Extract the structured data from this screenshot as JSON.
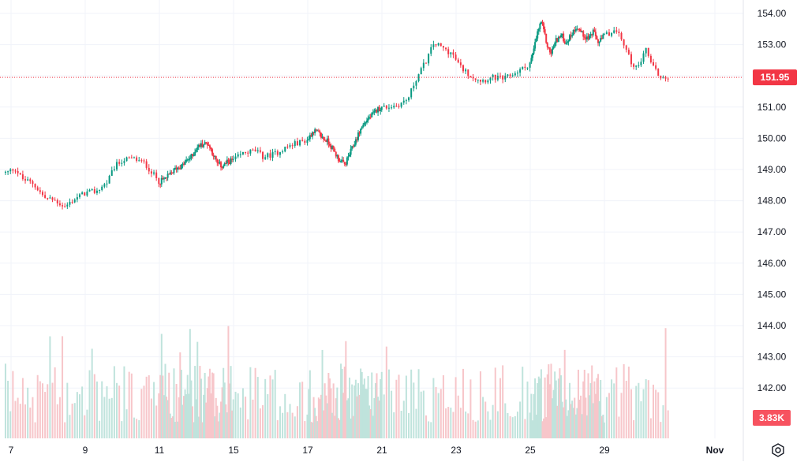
{
  "chart_data": {
    "type": "candlestick",
    "title": "",
    "xlabel": "",
    "ylabel": "",
    "ylim": [
      140.9,
      154.4
    ],
    "y_ticks": [
      "154.00",
      "153.00",
      "152.00",
      "151.00",
      "150.00",
      "149.00",
      "148.00",
      "147.00",
      "146.00",
      "145.00",
      "144.00",
      "143.00",
      "142.00"
    ],
    "y_tick_values": [
      154,
      153,
      152,
      151,
      150,
      149,
      148,
      147,
      146,
      145,
      144,
      143,
      142
    ],
    "x_ticks": [
      {
        "label": "7",
        "day": 7,
        "bold": false
      },
      {
        "label": "9",
        "day": 9,
        "bold": false
      },
      {
        "label": "11",
        "day": 11,
        "bold": false
      },
      {
        "label": "15",
        "day": 15,
        "bold": false
      },
      {
        "label": "17",
        "day": 17,
        "bold": false
      },
      {
        "label": "21",
        "day": 21,
        "bold": false
      },
      {
        "label": "23",
        "day": 23,
        "bold": false
      },
      {
        "label": "25",
        "day": 25,
        "bold": false
      },
      {
        "label": "29",
        "day": 29,
        "bold": false
      },
      {
        "label": "Nov",
        "day": 32,
        "bold": true
      }
    ],
    "price_path": [
      [
        6.9,
        148.9
      ],
      [
        7.1,
        149.05
      ],
      [
        7.3,
        148.7
      ],
      [
        7.6,
        148.55
      ],
      [
        7.9,
        148.1
      ],
      [
        8.2,
        148.0
      ],
      [
        8.45,
        147.8
      ],
      [
        8.7,
        148.05
      ],
      [
        9.0,
        148.25
      ],
      [
        9.3,
        148.3
      ],
      [
        9.6,
        148.6
      ],
      [
        9.8,
        149.1
      ],
      [
        10.0,
        149.3
      ],
      [
        10.3,
        149.35
      ],
      [
        10.6,
        149.2
      ],
      [
        10.8,
        148.9
      ],
      [
        11.0,
        148.6
      ],
      [
        11.3,
        148.7
      ],
      [
        11.6,
        148.85
      ],
      [
        11.9,
        149.05
      ],
      [
        12.2,
        149.1
      ],
      [
        12.5,
        149.3
      ],
      [
        12.8,
        149.45
      ],
      [
        13.0,
        149.7
      ],
      [
        13.3,
        149.8
      ],
      [
        13.6,
        149.85
      ],
      [
        13.9,
        149.5
      ],
      [
        14.1,
        149.2
      ],
      [
        14.4,
        149.1
      ],
      [
        14.7,
        149.25
      ],
      [
        15.0,
        149.3
      ],
      [
        15.3,
        149.55
      ],
      [
        15.6,
        149.6
      ],
      [
        15.8,
        149.4
      ],
      [
        16.1,
        149.5
      ],
      [
        16.4,
        149.7
      ],
      [
        16.7,
        149.85
      ],
      [
        17.0,
        149.95
      ],
      [
        17.3,
        150.25
      ],
      [
        17.6,
        150.15
      ],
      [
        17.8,
        150.0
      ],
      [
        18.1,
        149.9
      ],
      [
        18.4,
        149.6
      ],
      [
        18.7,
        149.3
      ],
      [
        19.0,
        149.15
      ],
      [
        19.3,
        149.55
      ],
      [
        19.6,
        149.95
      ],
      [
        19.9,
        150.35
      ],
      [
        20.2,
        150.6
      ],
      [
        20.5,
        150.75
      ],
      [
        20.8,
        150.95
      ],
      [
        21.1,
        151.0
      ],
      [
        21.4,
        151.05
      ],
      [
        21.7,
        151.25
      ],
      [
        21.9,
        151.85
      ],
      [
        22.2,
        152.5
      ],
      [
        22.4,
        153.05
      ],
      [
        22.7,
        152.85
      ],
      [
        22.9,
        152.7
      ],
      [
        23.1,
        152.3
      ],
      [
        23.4,
        152.0
      ],
      [
        23.7,
        151.85
      ],
      [
        24.0,
        151.95
      ],
      [
        24.3,
        151.9
      ],
      [
        24.6,
        152.1
      ],
      [
        24.9,
        152.3
      ],
      [
        25.1,
        152.6
      ],
      [
        25.4,
        153.4
      ],
      [
        25.6,
        153.75
      ],
      [
        25.9,
        153.0
      ],
      [
        26.1,
        152.7
      ],
      [
        26.4,
        153.15
      ],
      [
        26.7,
        153.3
      ],
      [
        26.9,
        153.05
      ],
      [
        27.2,
        153.3
      ],
      [
        27.5,
        153.6
      ],
      [
        27.8,
        153.35
      ],
      [
        28.1,
        153.2
      ],
      [
        28.4,
        153.4
      ],
      [
        28.7,
        153.05
      ],
      [
        29.0,
        153.3
      ],
      [
        29.3,
        153.45
      ],
      [
        29.5,
        153.1
      ],
      [
        29.7,
        152.5
      ],
      [
        29.9,
        152.2
      ],
      [
        30.1,
        152.9
      ],
      [
        30.3,
        152.4
      ],
      [
        30.5,
        151.95
      ],
      [
        30.7,
        151.95
      ]
    ],
    "last_price": "151.95",
    "last_price_color": "#f23645",
    "up_color": "#089981",
    "down_color": "#f23645",
    "volume_label": "3.83K",
    "volume_label_color": "#f7525f",
    "volume_max": 4,
    "grid": true,
    "price_scale_position": "right"
  },
  "settings": {
    "icon": "gear-icon"
  }
}
